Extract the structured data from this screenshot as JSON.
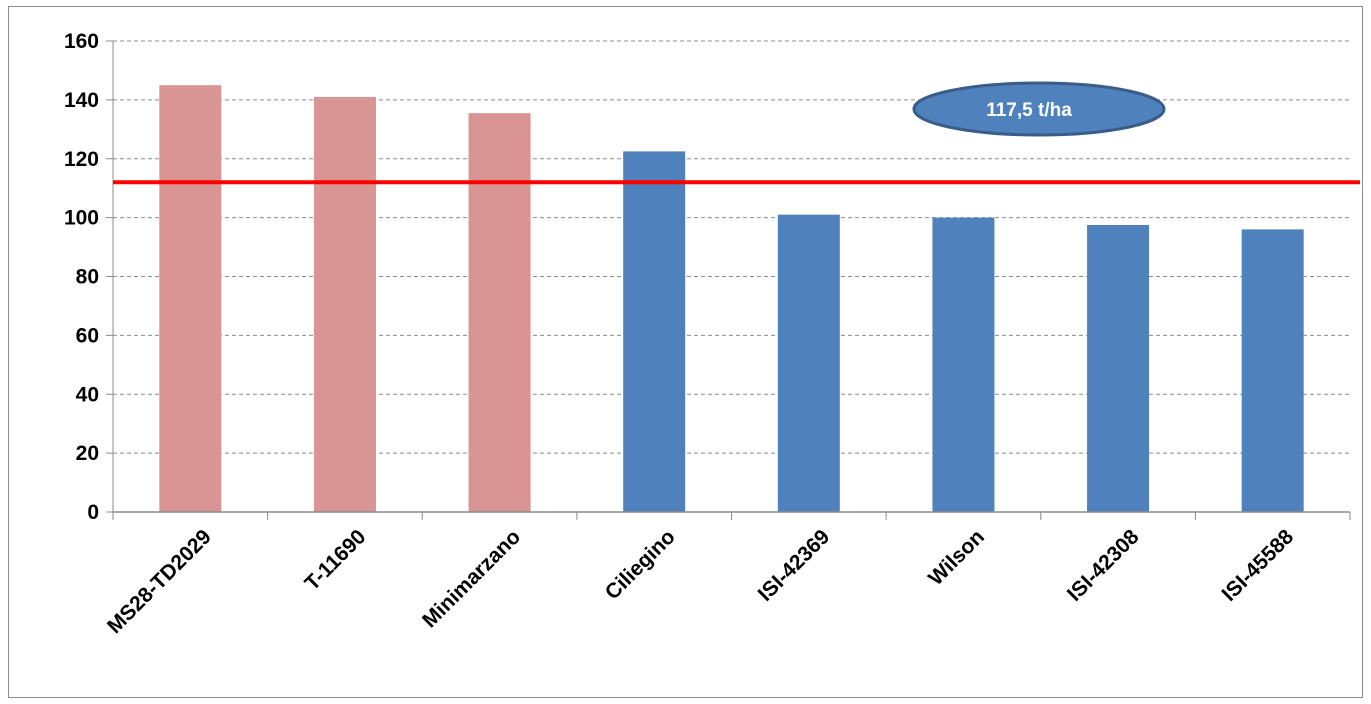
{
  "chart_data": {
    "type": "bar",
    "categories": [
      "MS28-TD2029",
      "T-11690",
      "Minimarzano",
      "Ciliegino",
      "ISI-42369",
      "Wilson",
      "ISI-42308",
      "ISI-45588"
    ],
    "values": [
      145,
      141,
      135.5,
      122.5,
      101,
      100,
      97.5,
      96
    ],
    "bar_colors": [
      "#d99594",
      "#d99594",
      "#d99594",
      "#4f81bd",
      "#4f81bd",
      "#4f81bd",
      "#4f81bd",
      "#4f81bd"
    ],
    "ylim": [
      0,
      160
    ],
    "yticks": [
      0,
      20,
      40,
      60,
      80,
      100,
      120,
      140,
      160
    ],
    "grid": true,
    "reference_line": {
      "value": 112,
      "color": "#ff0000"
    },
    "annotation": {
      "text": "117,5 t/ha",
      "fill": "#4f81bd",
      "border": "#385d8a"
    },
    "title": "",
    "xlabel": "",
    "ylabel": ""
  }
}
